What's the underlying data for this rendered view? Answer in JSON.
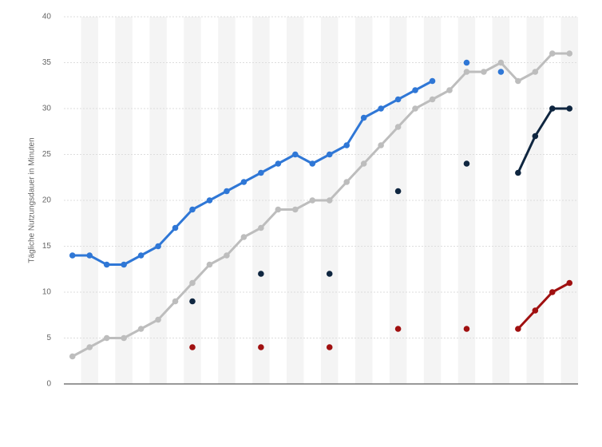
{
  "chart_data": {
    "type": "line",
    "y_label": "Tägliche Nutzungsdauer in Minuten",
    "categories": [
      null,
      null,
      null,
      null,
      null,
      null,
      null,
      null,
      null,
      null,
      null,
      null,
      null,
      null,
      null,
      null,
      null,
      null,
      null,
      null,
      null,
      null,
      null,
      null,
      null,
      null,
      null,
      null,
      null,
      null
    ],
    "ylim": [
      0,
      40
    ],
    "yticks": [
      0,
      5,
      10,
      15,
      20,
      25,
      30,
      35,
      40
    ],
    "grid": true,
    "series": [
      {
        "color": "#bdbdbd",
        "values": [
          3,
          4,
          5,
          5,
          6,
          7,
          9,
          11,
          13,
          14,
          16,
          17,
          19,
          19,
          20,
          20,
          22,
          24,
          26,
          28,
          30,
          31,
          32,
          34,
          34,
          35,
          33,
          34,
          36,
          36
        ]
      },
      {
        "color": "#2f77d6",
        "values": [
          14,
          14,
          13,
          13,
          14,
          15,
          17,
          19,
          20,
          21,
          22,
          23,
          24,
          25,
          24,
          25,
          26,
          29,
          30,
          31,
          32,
          33,
          null,
          35,
          null,
          34,
          null,
          null,
          null,
          null
        ]
      },
      {
        "color": "#0f2640",
        "values": [
          null,
          null,
          null,
          null,
          null,
          null,
          null,
          9,
          null,
          null,
          null,
          12,
          null,
          null,
          null,
          12,
          null,
          null,
          null,
          21,
          null,
          null,
          null,
          24,
          null,
          null,
          23,
          27,
          30,
          30
        ]
      },
      {
        "color": "#a01010",
        "values": [
          null,
          null,
          null,
          null,
          null,
          null,
          null,
          4,
          null,
          null,
          null,
          4,
          null,
          null,
          null,
          4,
          null,
          null,
          null,
          6,
          null,
          null,
          null,
          6,
          null,
          null,
          6,
          8,
          10,
          11
        ]
      }
    ]
  }
}
